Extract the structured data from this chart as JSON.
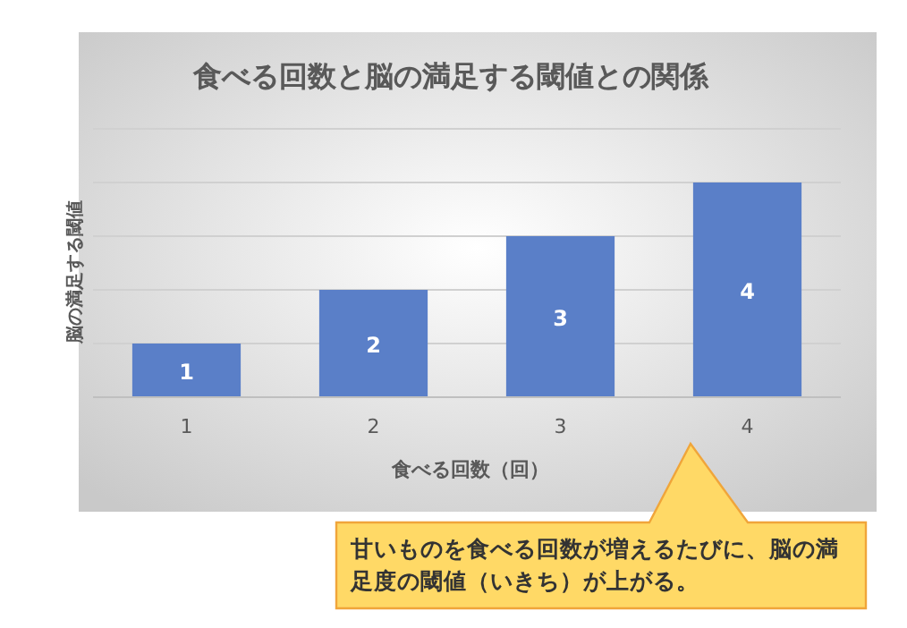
{
  "chart_data": {
    "type": "bar",
    "title": "食べる回数と脳の満足する閾値との関係",
    "xlabel": "食べる回数（回）",
    "ylabel": "脳の満足する閾値",
    "categories": [
      "1",
      "2",
      "3",
      "4"
    ],
    "values": [
      1,
      2,
      3,
      4
    ],
    "color": "#5a7fc8",
    "ylim": [
      0,
      5
    ],
    "yticks": [
      {
        "value": 0,
        "label": null
      },
      {
        "value": 1,
        "label": null
      },
      {
        "value": 2,
        "label": null
      },
      {
        "value": 3,
        "label": null
      },
      {
        "value": 4,
        "label": null
      },
      {
        "value": 5,
        "label": null
      }
    ],
    "grid": "y",
    "tick_labels": "x",
    "data_labels": true,
    "annotations": [
      "甘いものを食べる回数が増えるたびに、脳の満足度の閾値（いきち）が上がる。"
    ]
  }
}
